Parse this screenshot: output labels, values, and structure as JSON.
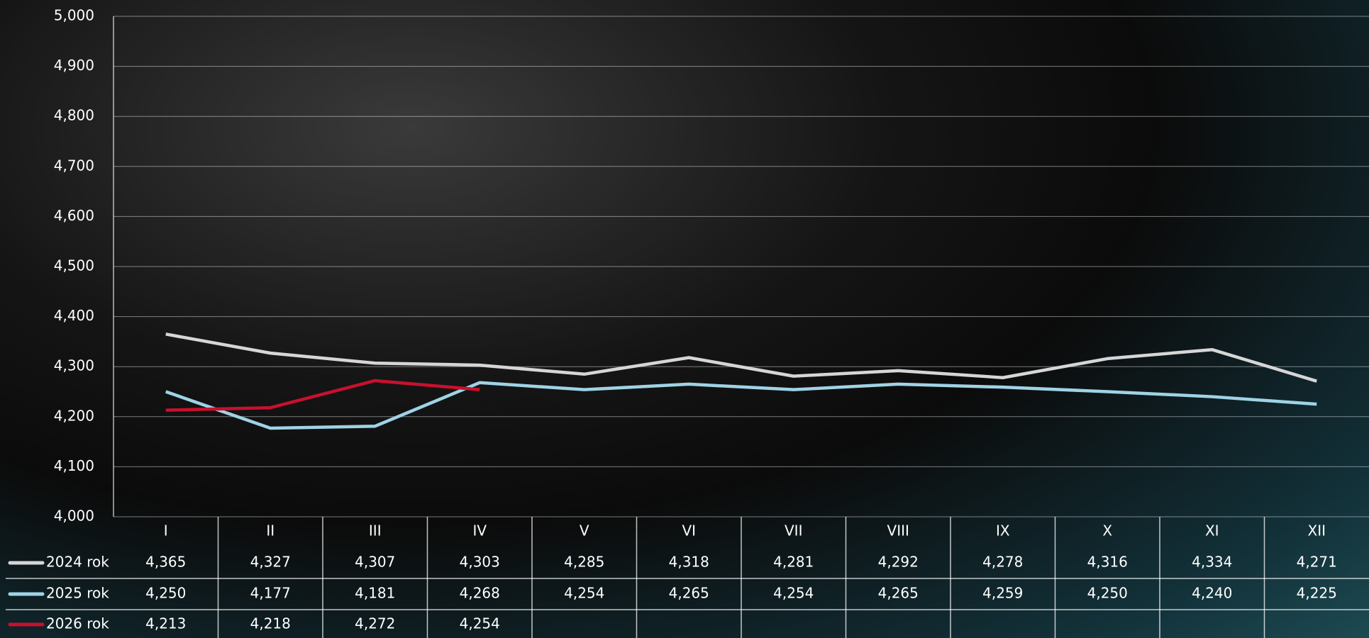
{
  "chart_data": {
    "type": "line",
    "categories": [
      "I",
      "II",
      "III",
      "IV",
      "V",
      "VI",
      "VII",
      "VIII",
      "IX",
      "X",
      "XI",
      "XII"
    ],
    "series": [
      {
        "name": "2024 rok",
        "color": "#d6d6d6",
        "values": [
          4365,
          4327,
          4307,
          4303,
          4285,
          4318,
          4281,
          4292,
          4278,
          4316,
          4334,
          4271
        ],
        "value_labels": [
          "4,365",
          "4,327",
          "4,307",
          "4,303",
          "4,285",
          "4,318",
          "4,281",
          "4,292",
          "4,278",
          "4,316",
          "4,334",
          "4,271"
        ]
      },
      {
        "name": "2025 rok",
        "color": "#9fd3e6",
        "values": [
          4250,
          4177,
          4181,
          4268,
          4254,
          4265,
          4254,
          4265,
          4259,
          4250,
          4240,
          4225
        ],
        "value_labels": [
          "4,250",
          "4,177",
          "4,181",
          "4,268",
          "4,254",
          "4,265",
          "4,254",
          "4,265",
          "4,259",
          "4,250",
          "4,240",
          "4,225"
        ]
      },
      {
        "name": "2026 rok",
        "color": "#c8102e",
        "values": [
          4213,
          4218,
          4272,
          4254,
          null,
          null,
          null,
          null,
          null,
          null,
          null,
          null
        ],
        "value_labels": [
          "4,213",
          "4,218",
          "4,272",
          "4,254",
          null,
          null,
          null,
          null,
          null,
          null,
          null,
          null
        ]
      }
    ],
    "ylim": [
      4000,
      5000
    ],
    "yticks": [
      {
        "value": 4000,
        "label": "4,000"
      },
      {
        "value": 4100,
        "label": "4,100"
      },
      {
        "value": 4200,
        "label": "4,200"
      },
      {
        "value": 4300,
        "label": "4,300"
      },
      {
        "value": 4400,
        "label": "4,400"
      },
      {
        "value": 4500,
        "label": "4,500"
      },
      {
        "value": 4600,
        "label": "4,600"
      },
      {
        "value": 4700,
        "label": "4,700"
      },
      {
        "value": 4800,
        "label": "4,800"
      },
      {
        "value": 4900,
        "label": "4,900"
      },
      {
        "value": 5000,
        "label": "5,000"
      }
    ],
    "grid": true
  }
}
